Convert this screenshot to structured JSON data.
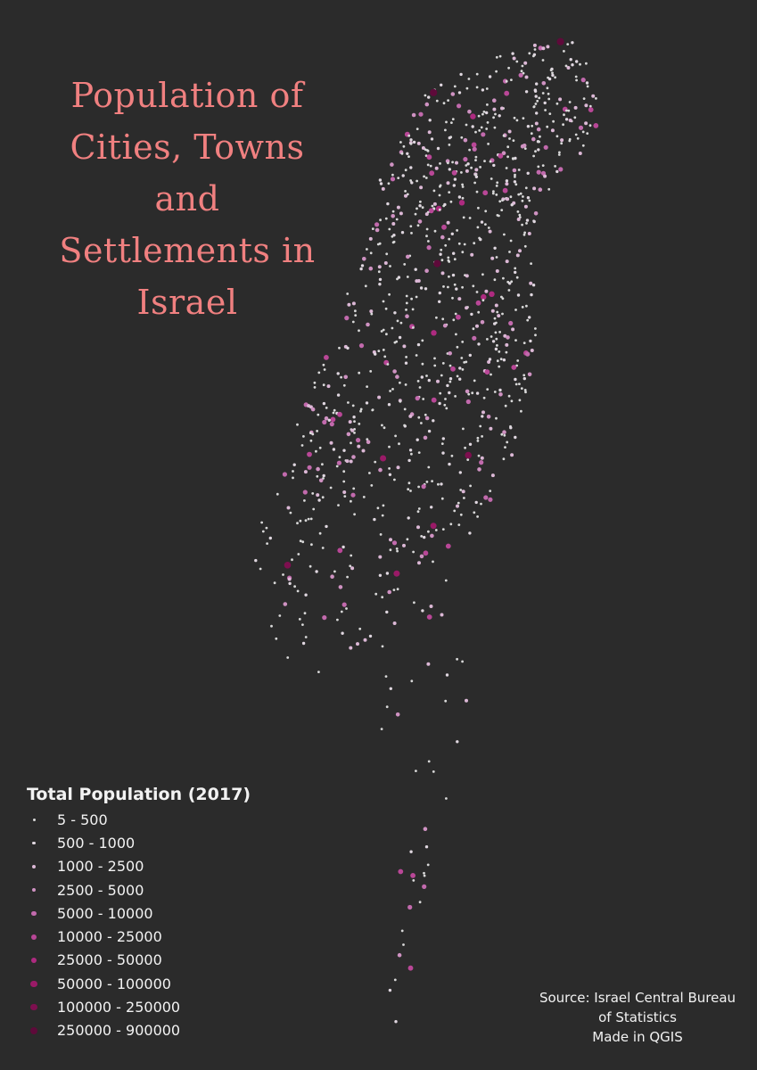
{
  "title": {
    "line1": "Population of",
    "line2": "Cities, Towns and",
    "line3": "Settlements in",
    "line4": "Israel"
  },
  "legend": {
    "title": "Total Population (2017)",
    "classes": [
      {
        "label": "5 - 500",
        "color": "#d9d9d9"
      },
      {
        "label": "500 - 1000",
        "color": "#e0d7e0"
      },
      {
        "label": "1000 - 2500",
        "color": "#dcb8d6"
      },
      {
        "label": "2500 - 5000",
        "color": "#cf92c2"
      },
      {
        "label": "5000 - 10000",
        "color": "#c26aad"
      },
      {
        "label": "10000 - 25000",
        "color": "#b94797"
      },
      {
        "label": "25000 - 50000",
        "color": "#ae2a80"
      },
      {
        "label": "50000 - 100000",
        "color": "#9a1a67"
      },
      {
        "label": "100000 - 250000",
        "color": "#7d0f4f"
      },
      {
        "label": "250000 - 900000",
        "color": "#5e0a3a"
      }
    ]
  },
  "source": {
    "line1": "Source: Israel Central Bureau",
    "line2": "of Statistics",
    "line3": "Made in QGIS"
  },
  "colors": {
    "background": "#2b2b2b",
    "title": "#f08080",
    "text": "#f2f2f2"
  }
}
